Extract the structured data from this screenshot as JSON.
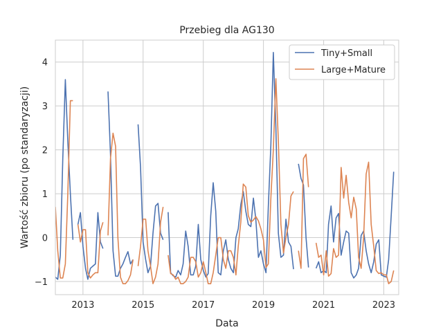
{
  "chart_data": {
    "type": "line",
    "title": "Przebieg dla AG130",
    "xlabel": "Data",
    "ylabel": "Wartość zbioru (po standaryzacji)",
    "xlim": [
      "2012-02-01",
      "2023-07-01"
    ],
    "ylim": [
      -1.3,
      4.5
    ],
    "x_ticks": [
      "2013",
      "2015",
      "2017",
      "2019",
      "2021",
      "2023"
    ],
    "y_ticks": [
      "−1",
      "0",
      "1",
      "2",
      "3",
      "4"
    ],
    "y_tick_values": [
      -1,
      0,
      1,
      2,
      3,
      4
    ],
    "grid": true,
    "legend_position": "top-right",
    "series": [
      {
        "name": "Tiny+Small",
        "color": "#4c72b0",
        "points": [
          [
            "2012-02-01",
            -0.9
          ],
          [
            "2012-03-01",
            -0.95
          ],
          [
            "2012-04-01",
            -0.4
          ],
          [
            "2012-05-01",
            1.8
          ],
          [
            "2012-06-01",
            3.6
          ],
          [
            "2012-07-01",
            2.2
          ],
          [
            "2012-08-01",
            1.0
          ],
          [
            "2012-09-01",
            -0.05
          ],
          [
            "2012-11-01",
            0.3
          ],
          [
            "2012-12-01",
            0.57
          ],
          [
            "2013-01-01",
            -0.2
          ],
          [
            "2013-02-01",
            -0.7
          ],
          [
            "2013-03-01",
            -0.95
          ],
          [
            "2013-04-01",
            -0.7
          ],
          [
            "2013-05-01",
            -0.65
          ],
          [
            "2013-06-01",
            -0.6
          ],
          [
            "2013-07-01",
            0.57
          ],
          [
            "2013-08-01",
            -0.1
          ],
          [
            "2013-09-01",
            -0.25
          ],
          [
            "2013-11-01",
            3.33
          ],
          [
            "2013-12-01",
            1.9
          ],
          [
            "2014-01-01",
            -0.3
          ],
          [
            "2014-02-01",
            -0.88
          ],
          [
            "2014-03-01",
            -0.88
          ],
          [
            "2014-04-01",
            -0.7
          ],
          [
            "2014-05-01",
            -0.6
          ],
          [
            "2014-06-01",
            -0.45
          ],
          [
            "2014-07-01",
            -0.32
          ],
          [
            "2014-08-01",
            -0.6
          ],
          [
            "2014-09-01",
            -0.5
          ],
          [
            "2014-11-01",
            2.58
          ],
          [
            "2014-12-01",
            1.6
          ],
          [
            "2015-01-01",
            -0.1
          ],
          [
            "2015-02-01",
            -0.5
          ],
          [
            "2015-03-01",
            -0.8
          ],
          [
            "2015-04-01",
            -0.65
          ],
          [
            "2015-05-01",
            0.1
          ],
          [
            "2015-06-01",
            0.72
          ],
          [
            "2015-07-01",
            0.78
          ],
          [
            "2015-08-01",
            0.1
          ],
          [
            "2015-09-01",
            -0.05
          ],
          [
            "2015-11-01",
            0.58
          ],
          [
            "2015-12-01",
            -0.8
          ],
          [
            "2016-01-01",
            -0.87
          ],
          [
            "2016-02-01",
            -0.9
          ],
          [
            "2016-03-01",
            -0.75
          ],
          [
            "2016-04-01",
            -0.85
          ],
          [
            "2016-05-01",
            -0.6
          ],
          [
            "2016-06-01",
            0.15
          ],
          [
            "2016-07-01",
            -0.2
          ],
          [
            "2016-08-01",
            -0.85
          ],
          [
            "2016-09-01",
            -0.85
          ],
          [
            "2016-10-01",
            -0.65
          ],
          [
            "2016-11-01",
            0.3
          ],
          [
            "2016-12-01",
            -0.5
          ],
          [
            "2017-01-01",
            -0.75
          ],
          [
            "2017-02-01",
            -0.9
          ],
          [
            "2017-03-01",
            -0.82
          ],
          [
            "2017-04-01",
            0.5
          ],
          [
            "2017-05-01",
            1.25
          ],
          [
            "2017-06-01",
            0.6
          ],
          [
            "2017-07-01",
            -0.8
          ],
          [
            "2017-08-01",
            -0.85
          ],
          [
            "2017-09-01",
            -0.3
          ],
          [
            "2017-10-01",
            -0.05
          ],
          [
            "2017-11-01",
            -0.5
          ],
          [
            "2017-12-01",
            -0.7
          ],
          [
            "2018-01-01",
            -0.8
          ],
          [
            "2018-02-01",
            0.0
          ],
          [
            "2018-03-01",
            0.2
          ],
          [
            "2018-04-01",
            0.75
          ],
          [
            "2018-05-01",
            1.05
          ],
          [
            "2018-06-01",
            0.6
          ],
          [
            "2018-07-01",
            0.3
          ],
          [
            "2018-08-01",
            0.25
          ],
          [
            "2018-09-01",
            0.9
          ],
          [
            "2018-10-01",
            0.4
          ],
          [
            "2018-11-01",
            -0.45
          ],
          [
            "2018-12-01",
            -0.3
          ],
          [
            "2019-01-01",
            -0.6
          ],
          [
            "2019-02-01",
            -0.8
          ],
          [
            "2019-03-01",
            0.7
          ],
          [
            "2019-04-01",
            2.1
          ],
          [
            "2019-05-01",
            4.22
          ],
          [
            "2019-06-01",
            2.5
          ],
          [
            "2019-07-01",
            0.1
          ],
          [
            "2019-08-01",
            -0.45
          ],
          [
            "2019-09-01",
            -0.4
          ],
          [
            "2019-10-01",
            0.42
          ],
          [
            "2019-11-01",
            -0.1
          ],
          [
            "2019-12-01",
            -0.2
          ],
          [
            "2020-01-01",
            -0.72
          ],
          [
            "2020-03-01",
            1.68
          ],
          [
            "2020-04-01",
            1.35
          ],
          [
            "2020-05-01",
            1.2
          ],
          [
            "2020-06-01",
            0.0
          ],
          [
            "2020-07-01",
            -0.68
          ],
          [
            "2020-10-01",
            -0.7
          ],
          [
            "2020-11-01",
            -0.55
          ],
          [
            "2020-12-01",
            -0.8
          ],
          [
            "2021-01-01",
            -0.75
          ],
          [
            "2021-02-01",
            -0.8
          ],
          [
            "2021-03-01",
            0.3
          ],
          [
            "2021-04-01",
            0.72
          ],
          [
            "2021-05-01",
            -0.1
          ],
          [
            "2021-06-01",
            0.45
          ],
          [
            "2021-07-01",
            0.55
          ],
          [
            "2021-08-01",
            -0.4
          ],
          [
            "2021-09-01",
            -0.1
          ],
          [
            "2021-10-01",
            0.15
          ],
          [
            "2021-11-01",
            0.1
          ],
          [
            "2021-12-01",
            -0.8
          ],
          [
            "2022-01-01",
            -0.92
          ],
          [
            "2022-02-01",
            -0.85
          ],
          [
            "2022-03-01",
            -0.7
          ],
          [
            "2022-04-01",
            0.05
          ],
          [
            "2022-05-01",
            0.15
          ],
          [
            "2022-06-01",
            -0.3
          ],
          [
            "2022-07-01",
            -0.6
          ],
          [
            "2022-08-01",
            -0.8
          ],
          [
            "2022-09-01",
            -0.55
          ],
          [
            "2022-10-01",
            -0.15
          ],
          [
            "2022-11-01",
            -0.05
          ],
          [
            "2022-12-01",
            -0.85
          ],
          [
            "2023-01-01",
            -0.88
          ],
          [
            "2023-02-01",
            -0.9
          ],
          [
            "2023-03-01",
            -0.5
          ],
          [
            "2023-04-01",
            0.5
          ],
          [
            "2023-05-01",
            1.5
          ]
        ]
      },
      {
        "name": "Large+Mature",
        "color": "#dd8452",
        "points": [
          [
            "2012-02-01",
            0.7
          ],
          [
            "2012-03-01",
            -0.3
          ],
          [
            "2012-04-01",
            -0.92
          ],
          [
            "2012-05-01",
            -0.92
          ],
          [
            "2012-06-01",
            -0.6
          ],
          [
            "2012-07-01",
            1.0
          ],
          [
            "2012-08-01",
            3.12
          ],
          [
            "2012-09-01",
            3.12
          ],
          [
            "2012-11-01",
            0.3
          ],
          [
            "2012-12-01",
            -0.1
          ],
          [
            "2013-01-01",
            0.18
          ],
          [
            "2013-02-01",
            0.18
          ],
          [
            "2013-03-01",
            -0.8
          ],
          [
            "2013-04-01",
            -0.92
          ],
          [
            "2013-05-01",
            -0.85
          ],
          [
            "2013-06-01",
            -0.8
          ],
          [
            "2013-07-01",
            -0.8
          ],
          [
            "2013-08-01",
            0.15
          ],
          [
            "2013-09-01",
            0.35
          ],
          [
            "2013-11-01",
            0.05
          ],
          [
            "2013-12-01",
            1.8
          ],
          [
            "2014-01-01",
            2.38
          ],
          [
            "2014-02-01",
            2.08
          ],
          [
            "2014-03-01",
            0.0
          ],
          [
            "2014-04-01",
            -0.9
          ],
          [
            "2014-05-01",
            -1.05
          ],
          [
            "2014-06-01",
            -1.05
          ],
          [
            "2014-07-01",
            -0.98
          ],
          [
            "2014-08-01",
            -0.85
          ],
          [
            "2014-09-01",
            -0.5
          ],
          [
            "2014-11-01",
            -0.65
          ],
          [
            "2014-12-01",
            -0.2
          ],
          [
            "2015-01-01",
            0.42
          ],
          [
            "2015-02-01",
            0.42
          ],
          [
            "2015-03-01",
            -0.3
          ],
          [
            "2015-04-01",
            -0.65
          ],
          [
            "2015-05-01",
            -1.05
          ],
          [
            "2015-06-01",
            -0.9
          ],
          [
            "2015-07-01",
            -0.6
          ],
          [
            "2015-08-01",
            0.35
          ],
          [
            "2015-09-01",
            0.7
          ],
          [
            "2015-11-01",
            -0.4
          ],
          [
            "2015-12-01",
            -0.82
          ],
          [
            "2016-01-01",
            -0.85
          ],
          [
            "2016-02-01",
            -0.95
          ],
          [
            "2016-03-01",
            -0.9
          ],
          [
            "2016-04-01",
            -1.05
          ],
          [
            "2016-05-01",
            -1.05
          ],
          [
            "2016-06-01",
            -1.0
          ],
          [
            "2016-07-01",
            -0.9
          ],
          [
            "2016-08-01",
            -0.45
          ],
          [
            "2016-09-01",
            -0.45
          ],
          [
            "2016-10-01",
            -0.55
          ],
          [
            "2016-11-01",
            -0.9
          ],
          [
            "2016-12-01",
            -0.8
          ],
          [
            "2017-01-01",
            -0.55
          ],
          [
            "2017-02-01",
            -0.8
          ],
          [
            "2017-03-01",
            -1.05
          ],
          [
            "2017-04-01",
            -1.05
          ],
          [
            "2017-05-01",
            -0.8
          ],
          [
            "2017-06-01",
            -0.4
          ],
          [
            "2017-07-01",
            0.0
          ],
          [
            "2017-08-01",
            0.0
          ],
          [
            "2017-09-01",
            -0.5
          ],
          [
            "2017-10-01",
            -0.7
          ],
          [
            "2017-11-01",
            -0.3
          ],
          [
            "2017-12-01",
            -0.3
          ],
          [
            "2018-01-01",
            -0.45
          ],
          [
            "2018-02-01",
            -0.85
          ],
          [
            "2018-03-01",
            -0.2
          ],
          [
            "2018-04-01",
            0.35
          ],
          [
            "2018-05-01",
            1.22
          ],
          [
            "2018-06-01",
            1.15
          ],
          [
            "2018-07-01",
            0.5
          ],
          [
            "2018-08-01",
            0.35
          ],
          [
            "2018-09-01",
            0.4
          ],
          [
            "2018-10-01",
            0.48
          ],
          [
            "2018-11-01",
            0.38
          ],
          [
            "2018-12-01",
            0.2
          ],
          [
            "2019-01-01",
            -0.05
          ],
          [
            "2019-02-01",
            -0.68
          ],
          [
            "2019-03-01",
            -0.6
          ],
          [
            "2019-04-01",
            0.9
          ],
          [
            "2019-05-01",
            2.0
          ],
          [
            "2019-06-01",
            3.62
          ],
          [
            "2019-07-01",
            2.2
          ],
          [
            "2019-08-01",
            0.3
          ],
          [
            "2019-09-01",
            -0.35
          ],
          [
            "2019-10-01",
            0.0
          ],
          [
            "2019-11-01",
            0.3
          ],
          [
            "2019-12-01",
            0.95
          ],
          [
            "2020-01-01",
            1.05
          ],
          [
            "2020-03-01",
            -0.3
          ],
          [
            "2020-04-01",
            -0.7
          ],
          [
            "2020-05-01",
            1.8
          ],
          [
            "2020-06-01",
            1.9
          ],
          [
            "2020-07-01",
            1.15
          ],
          [
            "2020-10-01",
            -0.12
          ],
          [
            "2020-11-01",
            -0.45
          ],
          [
            "2020-12-01",
            -0.4
          ],
          [
            "2021-01-01",
            -0.85
          ],
          [
            "2021-02-01",
            -0.3
          ],
          [
            "2021-03-01",
            -0.88
          ],
          [
            "2021-04-01",
            -0.82
          ],
          [
            "2021-05-01",
            -0.25
          ],
          [
            "2021-06-01",
            -0.45
          ],
          [
            "2021-07-01",
            -0.4
          ],
          [
            "2021-08-01",
            1.6
          ],
          [
            "2021-09-01",
            0.9
          ],
          [
            "2021-10-01",
            1.42
          ],
          [
            "2021-11-01",
            0.8
          ],
          [
            "2021-12-01",
            0.45
          ],
          [
            "2022-01-01",
            0.92
          ],
          [
            "2022-02-01",
            0.65
          ],
          [
            "2022-03-01",
            -0.45
          ],
          [
            "2022-04-01",
            -0.7
          ],
          [
            "2022-05-01",
            0.0
          ],
          [
            "2022-06-01",
            1.45
          ],
          [
            "2022-07-01",
            1.72
          ],
          [
            "2022-08-01",
            0.3
          ],
          [
            "2022-09-01",
            -0.2
          ],
          [
            "2022-10-01",
            -0.75
          ],
          [
            "2022-11-01",
            -0.82
          ],
          [
            "2022-12-01",
            -0.8
          ],
          [
            "2023-01-01",
            -0.85
          ],
          [
            "2023-02-01",
            -0.85
          ],
          [
            "2023-03-01",
            -1.05
          ],
          [
            "2023-04-01",
            -1.0
          ],
          [
            "2023-05-01",
            -0.75
          ]
        ]
      }
    ]
  }
}
